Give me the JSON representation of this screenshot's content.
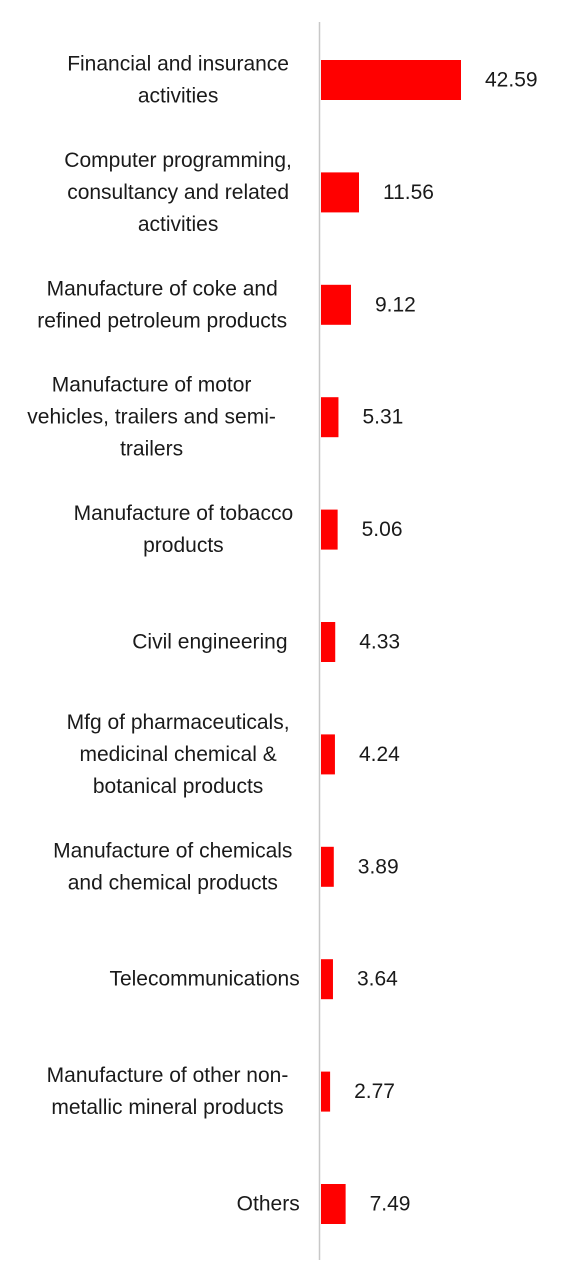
{
  "colors": {
    "bar": "#ff0000",
    "axis": "#c8c8c8",
    "text": "#1a1a1a",
    "background": "#ffffff"
  },
  "chart_data": {
    "type": "bar",
    "orientation": "horizontal",
    "title": "",
    "xlabel": "",
    "ylabel": "",
    "grid": false,
    "legend": "none",
    "xlim": [
      0,
      42.59
    ],
    "categories": [
      [
        "Financial and insurance",
        "activities"
      ],
      [
        "Computer programming,",
        "consultancy and related",
        "activities"
      ],
      [
        "Manufacture of coke and",
        "refined petroleum products"
      ],
      [
        "Manufacture of motor",
        "vehicles, trailers and semi-",
        "trailers"
      ],
      [
        "Manufacture of tobacco",
        "products"
      ],
      [
        "Civil engineering"
      ],
      [
        "Mfg of pharmaceuticals,",
        "medicinal chemical &",
        "botanical products"
      ],
      [
        "Manufacture of chemicals",
        "and chemical products"
      ],
      [
        "Telecommunications"
      ],
      [
        "Manufacture of other non-",
        "metallic mineral products"
      ],
      [
        "Others"
      ]
    ],
    "values": [
      42.59,
      11.56,
      9.12,
      5.31,
      5.06,
      4.33,
      4.24,
      3.89,
      3.64,
      2.77,
      7.49
    ],
    "value_labels": [
      "42.59",
      "11.56",
      "9.12",
      "5.31",
      "5.06",
      "4.33",
      "4.24",
      "3.89",
      "3.64",
      "2.77",
      "7.49"
    ]
  }
}
